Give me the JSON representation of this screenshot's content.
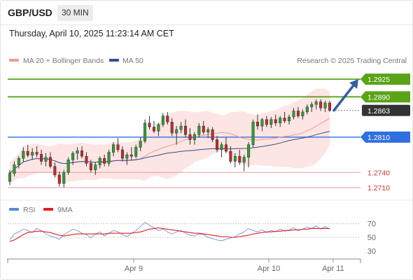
{
  "header": {
    "symbol": "GBP/USD",
    "timeframe": "30 MIN"
  },
  "timestamp": "Thursday, April 10, 2025 11:23:14 AM CET",
  "legend": {
    "bollinger": {
      "label": "MA 20 + Bollinger Bands",
      "color": "#f19a92"
    },
    "ma50": {
      "label": "MA 50",
      "color": "#2f4f8f"
    },
    "source": "Research © 2025 Trading Central"
  },
  "rsi_legend": {
    "rsi": {
      "label": "RSI",
      "color": "#5b8ad6"
    },
    "ma9": {
      "label": "9MA",
      "color": "#e02020"
    }
  },
  "chart_data": [
    {
      "type": "line",
      "series_kind": "candlestick",
      "ylim": [
        1.2696,
        1.2946
      ],
      "x_ticks": [
        "Apr 9",
        "Apr 10",
        "Apr 11"
      ],
      "levels": [
        {
          "value": 1.2925,
          "label": "1.2925",
          "kind": "resistance",
          "color": "#5aa317"
        },
        {
          "value": 1.289,
          "label": "1.2890",
          "kind": "resistance",
          "color": "#5aa317"
        },
        {
          "value": 1.2863,
          "label": "1.2863",
          "kind": "current",
          "color": "#333333"
        },
        {
          "value": 1.281,
          "label": "1.2810",
          "kind": "pivot",
          "color": "#2f6fe0"
        },
        {
          "value": 1.274,
          "label": "1.2740",
          "kind": "support",
          "color": "#e05050"
        },
        {
          "value": 1.271,
          "label": "1.2710",
          "kind": "support",
          "color": "#e05050"
        }
      ],
      "candles": [
        [
          1.2722,
          1.2745,
          1.2715,
          1.2738
        ],
        [
          1.2738,
          1.2762,
          1.2732,
          1.2755
        ],
        [
          1.2755,
          1.2772,
          1.2748,
          1.2768
        ],
        [
          1.2768,
          1.279,
          1.276,
          1.2782
        ],
        [
          1.2782,
          1.2795,
          1.277,
          1.2774
        ],
        [
          1.2774,
          1.2788,
          1.2765,
          1.278
        ],
        [
          1.278,
          1.2792,
          1.277,
          1.2776
        ],
        [
          1.2776,
          1.2785,
          1.2755,
          1.2762
        ],
        [
          1.2762,
          1.2778,
          1.2752,
          1.277
        ],
        [
          1.277,
          1.278,
          1.2748,
          1.2752
        ],
        [
          1.2752,
          1.276,
          1.273,
          1.2735
        ],
        [
          1.2735,
          1.2742,
          1.2712,
          1.2718
        ],
        [
          1.2718,
          1.2745,
          1.271,
          1.274
        ],
        [
          1.274,
          1.277,
          1.2735,
          1.2765
        ],
        [
          1.2765,
          1.2782,
          1.2755,
          1.2778
        ],
        [
          1.2778,
          1.279,
          1.2765,
          1.2783
        ],
        [
          1.2783,
          1.2792,
          1.2768,
          1.2772
        ],
        [
          1.2772,
          1.278,
          1.2752,
          1.2758
        ],
        [
          1.2758,
          1.2765,
          1.274,
          1.2745
        ],
        [
          1.2745,
          1.276,
          1.2735,
          1.2755
        ],
        [
          1.2755,
          1.2772,
          1.2748,
          1.2768
        ],
        [
          1.2768,
          1.2775,
          1.2752,
          1.2758
        ],
        [
          1.2758,
          1.2785,
          1.2752,
          1.278
        ],
        [
          1.278,
          1.28,
          1.2772,
          1.2795
        ],
        [
          1.2795,
          1.2808,
          1.278,
          1.2785
        ],
        [
          1.2785,
          1.2792,
          1.2762,
          1.2768
        ],
        [
          1.2768,
          1.278,
          1.2755,
          1.2775
        ],
        [
          1.2775,
          1.279,
          1.2765,
          1.2772
        ],
        [
          1.2772,
          1.2795,
          1.2768,
          1.279
        ],
        [
          1.279,
          1.281,
          1.2782,
          1.2802
        ],
        [
          1.2802,
          1.2845,
          1.2798,
          1.2838
        ],
        [
          1.2838,
          1.2852,
          1.2825,
          1.283
        ],
        [
          1.283,
          1.2842,
          1.2818,
          1.2822
        ],
        [
          1.2822,
          1.2838,
          1.2812,
          1.2835
        ],
        [
          1.2835,
          1.2858,
          1.283,
          1.2852
        ],
        [
          1.2852,
          1.286,
          1.2835,
          1.284
        ],
        [
          1.284,
          1.2848,
          1.2812,
          1.2818
        ],
        [
          1.2818,
          1.2832,
          1.2795,
          1.2825
        ],
        [
          1.2825,
          1.284,
          1.2818,
          1.2832
        ],
        [
          1.2832,
          1.2845,
          1.281,
          1.2815
        ],
        [
          1.2815,
          1.2828,
          1.2795,
          1.2805
        ],
        [
          1.2805,
          1.282,
          1.2795,
          1.2815
        ],
        [
          1.2815,
          1.2838,
          1.281,
          1.2832
        ],
        [
          1.2832,
          1.2842,
          1.2815,
          1.282
        ],
        [
          1.282,
          1.283,
          1.2808,
          1.2825
        ],
        [
          1.2825,
          1.283,
          1.28,
          1.2805
        ],
        [
          1.2805,
          1.2812,
          1.278,
          1.2785
        ],
        [
          1.2785,
          1.28,
          1.277,
          1.2795
        ],
        [
          1.2795,
          1.281,
          1.2778,
          1.2782
        ],
        [
          1.2782,
          1.2792,
          1.2758,
          1.2762
        ],
        [
          1.2762,
          1.2778,
          1.275,
          1.2772
        ],
        [
          1.2772,
          1.2785,
          1.2755,
          1.276
        ],
        [
          1.276,
          1.2775,
          1.2742,
          1.277
        ],
        [
          1.277,
          1.28,
          1.275,
          1.2795
        ],
        [
          1.2795,
          1.2845,
          1.279,
          1.284
        ],
        [
          1.284,
          1.2855,
          1.2825,
          1.2832
        ],
        [
          1.2832,
          1.2848,
          1.2822,
          1.2845
        ],
        [
          1.2845,
          1.2852,
          1.283,
          1.2835
        ],
        [
          1.2835,
          1.285,
          1.2828,
          1.2845
        ],
        [
          1.2845,
          1.2855,
          1.2832,
          1.2838
        ],
        [
          1.2838,
          1.2852,
          1.283,
          1.2848
        ],
        [
          1.2848,
          1.286,
          1.2838,
          1.2842
        ],
        [
          1.2842,
          1.2855,
          1.2835,
          1.285
        ],
        [
          1.285,
          1.2868,
          1.2845,
          1.2862
        ],
        [
          1.2862,
          1.287,
          1.2848,
          1.2852
        ],
        [
          1.2852,
          1.2865,
          1.2845,
          1.286
        ],
        [
          1.286,
          1.2875,
          1.2855,
          1.287
        ],
        [
          1.287,
          1.288,
          1.286,
          1.2875
        ],
        [
          1.2875,
          1.2885,
          1.2865,
          1.288
        ],
        [
          1.288,
          1.2885,
          1.2862,
          1.2868
        ],
        [
          1.2868,
          1.2882,
          1.286,
          1.2878
        ],
        [
          1.2878,
          1.2882,
          1.286,
          1.2863
        ]
      ]
    },
    {
      "type": "line",
      "title": "RSI",
      "ylim": [
        20,
        80
      ],
      "y_ticks": [
        30,
        50,
        70
      ],
      "reference_lines": [
        50,
        70
      ],
      "series": [
        {
          "name": "RSI",
          "values": [
            46,
            55,
            58,
            62,
            60,
            57,
            63,
            60,
            55,
            52,
            50,
            47,
            54,
            58,
            62,
            60,
            56,
            54,
            49,
            55,
            58,
            52,
            56,
            60,
            58,
            54,
            51,
            56,
            60,
            66,
            72,
            68,
            64,
            60,
            62,
            58,
            55,
            58,
            60,
            56,
            53,
            52,
            55,
            54,
            50,
            48,
            46,
            45,
            47,
            49,
            51,
            55,
            58,
            63,
            60,
            58,
            61,
            57,
            60,
            58,
            62,
            59,
            61,
            64,
            60,
            62,
            65,
            63,
            67,
            62,
            66,
            62
          ]
        },
        {
          "name": "9MA",
          "values": [
            44,
            46,
            50,
            54,
            57,
            58,
            59,
            59,
            58,
            57,
            55,
            53,
            52,
            53,
            54,
            55,
            55,
            55,
            55,
            55,
            55,
            55,
            56,
            56,
            56,
            56,
            56,
            56,
            57,
            58,
            60,
            62,
            63,
            64,
            63,
            62,
            61,
            60,
            59,
            58,
            57,
            56,
            56,
            55,
            54,
            53,
            52,
            51,
            51,
            50,
            50,
            51,
            52,
            53,
            55,
            56,
            57,
            58,
            58,
            59,
            59,
            60,
            60,
            61,
            61,
            62,
            62,
            63,
            63,
            63,
            63,
            63
          ]
        }
      ]
    }
  ]
}
